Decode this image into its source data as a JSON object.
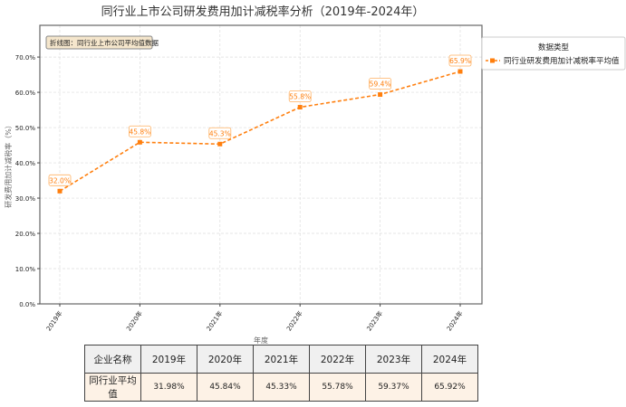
{
  "chart_data": {
    "type": "line",
    "title": "同行业上市公司研发费用加计减税率分析（2019年-2024年）",
    "xlabel": "年度",
    "ylabel": "研发费用加计减税率（%）",
    "categories": [
      "2019年",
      "2020年",
      "2021年",
      "2022年",
      "2023年",
      "2024年"
    ],
    "series": [
      {
        "name": "同行业研发费用加计减税率平均值",
        "values": [
          31.98,
          45.84,
          45.33,
          55.78,
          59.37,
          65.92
        ],
        "data_labels": [
          "32.0%",
          "45.8%",
          "45.3%",
          "55.8%",
          "59.4%",
          "65.9%"
        ],
        "color": "#ff7f0e"
      }
    ],
    "ylim": [
      0,
      79
    ],
    "yticks": [
      0,
      10,
      20,
      30,
      40,
      50,
      60,
      70
    ],
    "ytick_labels": [
      "0.0%",
      "10.0%",
      "20.0%",
      "30.0%",
      "40.0%",
      "50.0%",
      "60.0%",
      "70.0%"
    ],
    "grid": true,
    "legend": {
      "title": "数据类型",
      "placement": "outside-right"
    },
    "annotation": "折线图：同行业上市公司平均值数据"
  },
  "table": {
    "headers": [
      "企业名称",
      "2019年",
      "2020年",
      "2021年",
      "2022年",
      "2023年",
      "2024年"
    ],
    "rows": [
      [
        "同行业平均值",
        "31.98%",
        "45.84%",
        "45.33%",
        "55.78%",
        "59.37%",
        "65.92%"
      ]
    ]
  }
}
